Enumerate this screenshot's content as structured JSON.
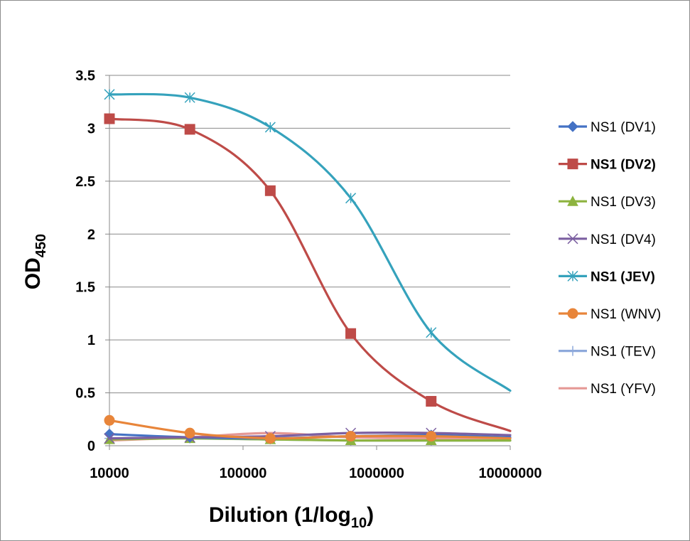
{
  "chart_data": {
    "type": "line",
    "xlabel": "Dilution (1/log",
    "xlabel_sub": "10",
    "xlabel_end": ")",
    "ylabel": "OD",
    "ylabel_sub": "450",
    "x_scale": "log",
    "xlim": [
      10000,
      10000000
    ],
    "ylim": [
      0,
      3.5
    ],
    "x_ticks": [
      "10000",
      "100000",
      "1000000",
      "10000000"
    ],
    "y_ticks": [
      "0",
      "0.5",
      "1",
      "1.5",
      "2",
      "2.5",
      "3",
      "3.5"
    ],
    "grid": "horizontal",
    "legend_position": "right",
    "x": [
      10000,
      40000,
      160000,
      640000,
      2560000,
      10240000
    ],
    "series": [
      {
        "name": "NS1 (DV1)",
        "color": "#4472C4",
        "marker": "diamond",
        "bold": false,
        "values": [
          0.11,
          0.08,
          0.07,
          0.09,
          0.1,
          0.08
        ]
      },
      {
        "name": "NS1 (DV2)",
        "color": "#BE4B48",
        "marker": "square",
        "bold": true,
        "values": [
          3.09,
          2.99,
          2.41,
          1.06,
          0.42,
          0.14
        ]
      },
      {
        "name": "NS1 (DV3)",
        "color": "#8DB33F",
        "marker": "triangle",
        "bold": false,
        "values": [
          0.06,
          0.07,
          0.06,
          0.05,
          0.05,
          0.05
        ]
      },
      {
        "name": "NS1 (DV4)",
        "color": "#7B5FA1",
        "marker": "x",
        "bold": false,
        "values": [
          0.07,
          0.08,
          0.09,
          0.12,
          0.12,
          0.1
        ]
      },
      {
        "name": "NS1 (JEV)",
        "color": "#35A2BC",
        "marker": "star",
        "bold": true,
        "values": [
          3.32,
          3.29,
          3.01,
          2.34,
          1.07,
          0.52
        ]
      },
      {
        "name": "NS1 (WNV)",
        "color": "#E8853A",
        "marker": "circle",
        "bold": false,
        "values": [
          0.24,
          0.12,
          0.07,
          0.09,
          0.09,
          0.07
        ]
      },
      {
        "name": "NS1 (TEV)",
        "color": "#8EA9DB",
        "marker": "plus",
        "bold": false,
        "values": [
          0.07,
          0.07,
          0.06,
          0.05,
          0.05,
          0.05
        ]
      },
      {
        "name": "NS1 (YFV)",
        "color": "#E59895",
        "marker": "none",
        "bold": false,
        "values": [
          0.05,
          0.08,
          0.12,
          0.08,
          0.07,
          0.07
        ]
      }
    ]
  }
}
